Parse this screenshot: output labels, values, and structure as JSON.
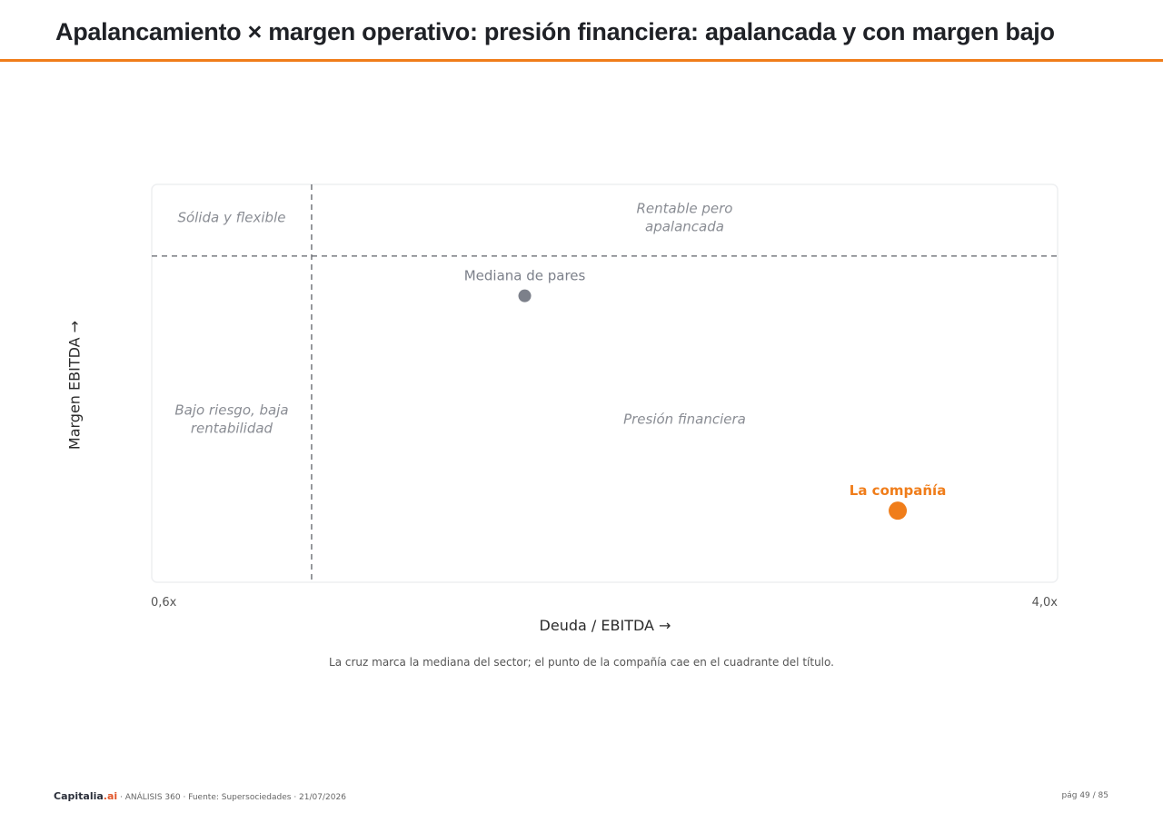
{
  "page": {
    "title": "Apalancamiento × margen operativo: presión financiera: apalancada y con margen bajo",
    "note": "La cruz marca la mediana del sector; el punto de la compañía cae en el cuadrante del título."
  },
  "chart_data": {
    "type": "scatter",
    "xlabel": "Deuda / EBITDA →",
    "ylabel": "Margen EBITDA →",
    "x_tick_min": "0,6x",
    "x_tick_max": "4,0x",
    "xlim": [
      0.6,
      4.0
    ],
    "ylim": [
      0,
      1
    ],
    "grid": false,
    "threshold_x": 1.2,
    "threshold_y": 0.82,
    "quadrants": {
      "top_left": "Sólida y flexible",
      "top_right": [
        "Rentable pero",
        "apalancada"
      ],
      "bottom_left": [
        "Bajo riesgo, baja",
        "rentabilidad"
      ],
      "bottom_right": "Presión financiera"
    },
    "points": [
      {
        "label": "Mediana de pares",
        "x": 2.0,
        "y": 0.72,
        "color": "#7c808a"
      },
      {
        "label": "La compañía",
        "x": 3.4,
        "y": 0.18,
        "color": "#f07d1a"
      }
    ]
  },
  "footer": {
    "brand_main": "Capitalia",
    "brand_accent": ".ai",
    "meta": " · ANÁLISIS 360 · Fuente: Supersociedades · 21/07/2026",
    "page": "pág 49 / 85"
  },
  "colors": {
    "accent": "#f07d1a",
    "peer": "#7c808a",
    "divider": "#5f6268"
  }
}
